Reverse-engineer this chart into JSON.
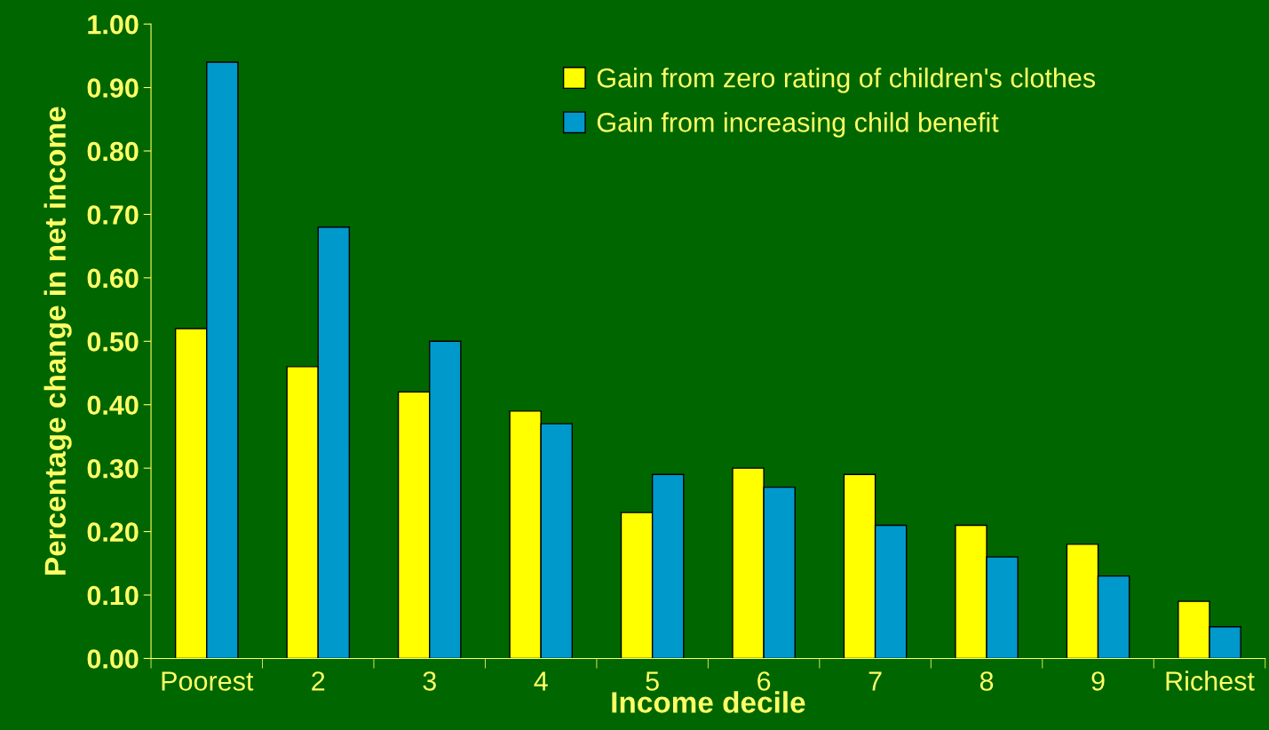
{
  "chart_data": {
    "type": "bar",
    "xlabel": "Income decile",
    "ylabel": "Percentage change in net income",
    "categories": [
      "Poorest",
      "2",
      "3",
      "4",
      "5",
      "6",
      "7",
      "8",
      "9",
      "Richest"
    ],
    "series": [
      {
        "name": "Gain from zero rating of children's clothes",
        "color": "#ffff00",
        "values": [
          0.52,
          0.46,
          0.42,
          0.39,
          0.23,
          0.3,
          0.29,
          0.21,
          0.18,
          0.09
        ]
      },
      {
        "name": "Gain from increasing child benefit",
        "color": "#0099cc",
        "values": [
          0.94,
          0.68,
          0.5,
          0.37,
          0.29,
          0.27,
          0.21,
          0.16,
          0.13,
          0.05
        ]
      }
    ],
    "ylim": [
      0,
      1.0
    ],
    "yticks": [
      {
        "value": 0,
        "label": "0.00"
      },
      {
        "value": 0.1,
        "label": "0.10"
      },
      {
        "value": 0.2,
        "label": "0.20"
      },
      {
        "value": 0.3,
        "label": "0.30"
      },
      {
        "value": 0.4,
        "label": "0.40"
      },
      {
        "value": 0.5,
        "label": "0.50"
      },
      {
        "value": 0.6,
        "label": "0.60"
      },
      {
        "value": 0.7,
        "label": "0.70"
      },
      {
        "value": 0.8,
        "label": "0.80"
      },
      {
        "value": 0.9,
        "label": "0.90"
      },
      {
        "value": 1.0,
        "label": "1.00"
      }
    ],
    "grid": false,
    "legend": "top right"
  }
}
